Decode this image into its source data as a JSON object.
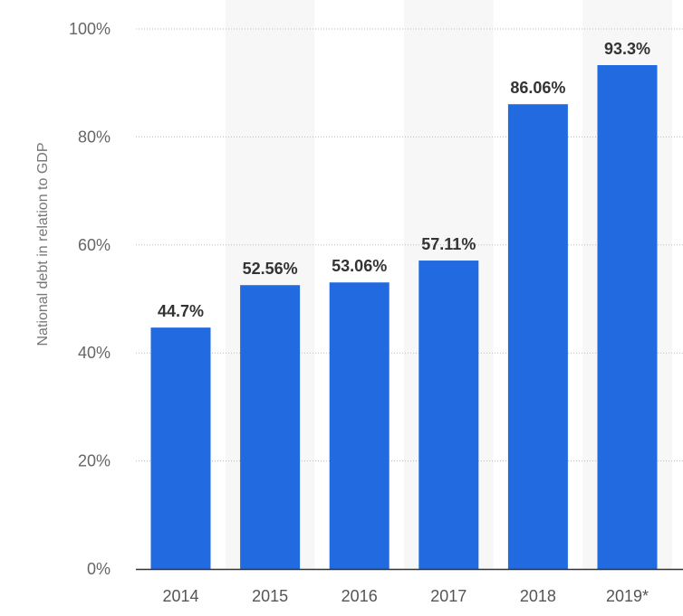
{
  "chart_data": {
    "type": "bar",
    "title": "",
    "xlabel": "",
    "ylabel": "National debt in relation to GDP",
    "categories": [
      "2014",
      "2015",
      "2016",
      "2017",
      "2018",
      "2019*"
    ],
    "values": [
      44.7,
      52.56,
      53.06,
      57.11,
      86.06,
      93.3
    ],
    "value_labels": [
      "44.7%",
      "52.56%",
      "53.06%",
      "57.11%",
      "86.06%",
      "93.3%"
    ],
    "ylim": [
      0,
      100
    ],
    "yticks": [
      0,
      20,
      40,
      60,
      80,
      100
    ],
    "ytick_labels": [
      "0%",
      "20%",
      "40%",
      "60%",
      "80%",
      "100%"
    ],
    "grid": true,
    "legend": "none",
    "colors": {
      "bar": "#226ADF",
      "band": "#F7F7F7",
      "grid": "#BBBBBB",
      "axis": "#333333"
    }
  }
}
